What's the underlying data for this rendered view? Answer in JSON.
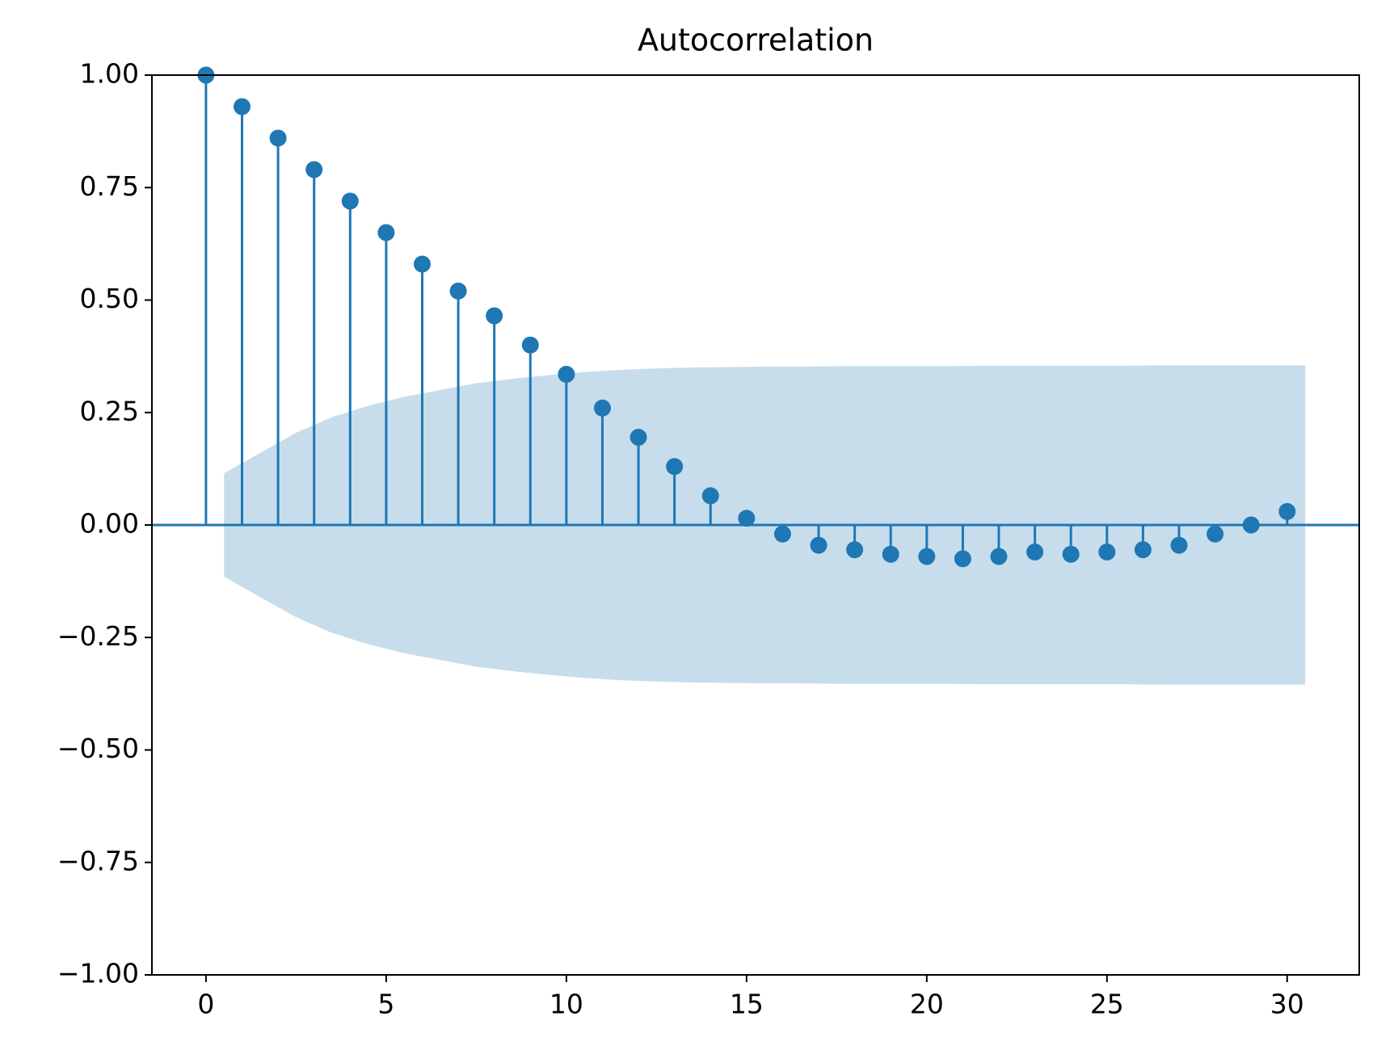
{
  "chart_data": {
    "type": "stem",
    "title": "Autocorrelation",
    "x": [
      0,
      1,
      2,
      3,
      4,
      5,
      6,
      7,
      8,
      9,
      10,
      11,
      12,
      13,
      14,
      15,
      16,
      17,
      18,
      19,
      20,
      21,
      22,
      23,
      24,
      25,
      26,
      27,
      28,
      29,
      30
    ],
    "values": [
      1.0,
      0.93,
      0.86,
      0.79,
      0.72,
      0.65,
      0.58,
      0.52,
      0.465,
      0.4,
      0.335,
      0.26,
      0.195,
      0.13,
      0.065,
      0.015,
      -0.02,
      -0.045,
      -0.055,
      -0.065,
      -0.07,
      -0.075,
      -0.07,
      -0.06,
      -0.065,
      -0.06,
      -0.055,
      -0.045,
      -0.02,
      0.0,
      0.03
    ],
    "color": "#1f77b4",
    "confidence": {
      "x": [
        0.5,
        1.5,
        2.5,
        3.5,
        4.5,
        5.5,
        6.5,
        7.5,
        8.5,
        9.5,
        10.5,
        11.5,
        12.5,
        13.5,
        14.5,
        15.5,
        16.5,
        17.5,
        18.5,
        19.5,
        20.5,
        21.5,
        22.5,
        23.5,
        24.5,
        25.5,
        26.5,
        27.5,
        28.5,
        29.5,
        30.5
      ],
      "upper": [
        0.115,
        0.16,
        0.205,
        0.24,
        0.265,
        0.285,
        0.3,
        0.315,
        0.325,
        0.333,
        0.34,
        0.345,
        0.348,
        0.35,
        0.351,
        0.352,
        0.352,
        0.353,
        0.353,
        0.353,
        0.353,
        0.354,
        0.354,
        0.354,
        0.354,
        0.354,
        0.355,
        0.355,
        0.355,
        0.355,
        0.355
      ],
      "lower": [
        -0.115,
        -0.16,
        -0.205,
        -0.24,
        -0.265,
        -0.285,
        -0.3,
        -0.315,
        -0.325,
        -0.333,
        -0.34,
        -0.345,
        -0.348,
        -0.35,
        -0.351,
        -0.352,
        -0.352,
        -0.353,
        -0.353,
        -0.353,
        -0.353,
        -0.354,
        -0.354,
        -0.354,
        -0.354,
        -0.354,
        -0.355,
        -0.355,
        -0.355,
        -0.355,
        -0.355
      ]
    },
    "xlim": [
      -1.5,
      32
    ],
    "ylim": [
      -1,
      1
    ],
    "xticks": [
      0,
      5,
      10,
      15,
      20,
      25,
      30
    ],
    "yticks": [
      {
        "value": -1,
        "label": "−1.00"
      },
      {
        "value": -0.75,
        "label": "−0.75"
      },
      {
        "value": -0.5,
        "label": "−0.50"
      },
      {
        "value": -0.25,
        "label": "−0.25"
      },
      {
        "value": 0,
        "label": "0.00"
      },
      {
        "value": 0.25,
        "label": "0.25"
      },
      {
        "value": 0.5,
        "label": "0.50"
      },
      {
        "value": 0.75,
        "label": "0.75"
      },
      {
        "value": 1,
        "label": "1.00"
      }
    ]
  }
}
